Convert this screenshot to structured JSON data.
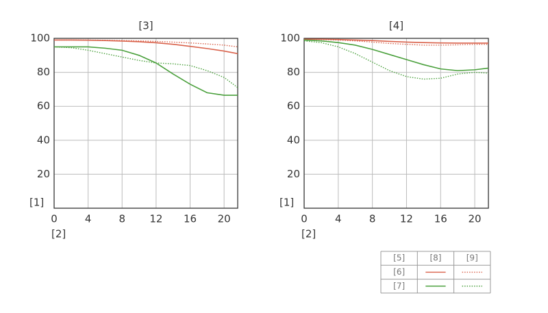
{
  "chart_data": [
    {
      "type": "line",
      "title": "[3]",
      "x_label": "[2]",
      "y_label": "[1]",
      "x": [
        0,
        2,
        4,
        6,
        8,
        10,
        12,
        14,
        16,
        18,
        20,
        21.6
      ],
      "xlim": [
        0,
        21.6
      ],
      "xticks": [
        0,
        4,
        8,
        12,
        16,
        20
      ],
      "ylim": [
        0,
        100
      ],
      "yticks": [
        20,
        40,
        60,
        80,
        100
      ],
      "grid": true,
      "series": [
        {
          "color": "#d9614a",
          "style": "solid",
          "values": [
            99,
            99,
            98.9,
            98.7,
            98.4,
            98,
            97.4,
            96.5,
            95.3,
            94,
            92.5,
            91
          ]
        },
        {
          "color": "#d9614a",
          "style": "dotted",
          "values": [
            99,
            99,
            99,
            98.9,
            98.7,
            98.5,
            98.2,
            97.8,
            97.3,
            96.7,
            96,
            95
          ]
        },
        {
          "color": "#4aa03c",
          "style": "solid",
          "values": [
            95,
            95,
            95,
            94.2,
            93,
            90,
            85.5,
            79,
            73,
            68,
            66.5,
            66.5
          ]
        },
        {
          "color": "#4aa03c",
          "style": "dotted",
          "values": [
            95,
            94.5,
            93,
            91,
            89,
            87,
            85.5,
            85,
            84,
            81,
            77,
            71
          ]
        }
      ]
    },
    {
      "type": "line",
      "title": "[4]",
      "x_label": "[2]",
      "y_label": "[1]",
      "x": [
        0,
        2,
        4,
        6,
        8,
        10,
        12,
        14,
        16,
        18,
        20,
        21.6
      ],
      "xlim": [
        0,
        21.6
      ],
      "xticks": [
        0,
        4,
        8,
        12,
        16,
        20
      ],
      "ylim": [
        0,
        100
      ],
      "yticks": [
        20,
        40,
        60,
        80,
        100
      ],
      "grid": true,
      "series": [
        {
          "color": "#d9614a",
          "style": "solid",
          "values": [
            99.5,
            99.5,
            99.3,
            99,
            98.7,
            98.2,
            97.8,
            97.5,
            97.3,
            97.2,
            97.2,
            97.2
          ]
        },
        {
          "color": "#d9614a",
          "style": "dotted",
          "values": [
            99.5,
            99.3,
            99,
            98.5,
            97.8,
            97,
            96.5,
            96,
            96,
            96.2,
            96.5,
            96.5
          ]
        },
        {
          "color": "#4aa03c",
          "style": "solid",
          "values": [
            99,
            98.5,
            97.5,
            96,
            93.5,
            90.5,
            87.5,
            84.5,
            82,
            81,
            81.5,
            82.5
          ]
        },
        {
          "color": "#4aa03c",
          "style": "dotted",
          "values": [
            98.5,
            97.5,
            95,
            91,
            86,
            81,
            77.5,
            76,
            76.5,
            79,
            80,
            79.5
          ]
        }
      ]
    }
  ],
  "legend": {
    "header": "[5]",
    "columns": [
      "[8]",
      "[9]"
    ],
    "rows": [
      "[6]",
      "[7]"
    ]
  }
}
